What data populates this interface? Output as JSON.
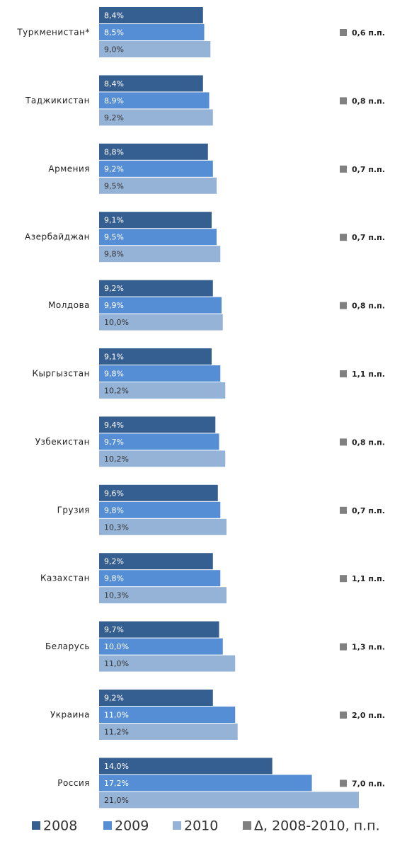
{
  "chart_data": {
    "type": "hbar",
    "categories": [
      "Туркменистан*",
      "Таджикистан",
      "Армения",
      "Азербайджан",
      "Молдова",
      "Кыргызстан",
      "Узбекистан",
      "Грузия",
      "Казахстан",
      "Беларусь",
      "Украина",
      "Россия"
    ],
    "series": [
      {
        "name": "2008",
        "color": "#365f91",
        "values": [
          8.4,
          8.4,
          8.8,
          9.1,
          9.2,
          9.1,
          9.4,
          9.6,
          9.2,
          9.7,
          9.2,
          14.0
        ],
        "value_labels": [
          "8,4%",
          "8,4%",
          "8,8%",
          "9,1%",
          "9,2%",
          "9,1%",
          "9,4%",
          "9,6%",
          "9,2%",
          "9,7%",
          "9,2%",
          "14,0%"
        ]
      },
      {
        "name": "2009",
        "color": "#558ed5",
        "values": [
          8.5,
          8.9,
          9.2,
          9.5,
          9.9,
          9.8,
          9.7,
          9.8,
          9.8,
          10.0,
          11.0,
          17.2
        ],
        "value_labels": [
          "8,5%",
          "8,9%",
          "9,2%",
          "9,5%",
          "9,9%",
          "9,8%",
          "9,7%",
          "9,8%",
          "9,8%",
          "10,0%",
          "11,0%",
          "17,2%"
        ]
      },
      {
        "name": "2010",
        "color": "#95b3d7",
        "values": [
          9.0,
          9.2,
          9.5,
          9.8,
          10.0,
          10.2,
          10.2,
          10.3,
          10.3,
          11.0,
          11.2,
          21.0
        ],
        "value_labels": [
          "9,0%",
          "9,2%",
          "9,5%",
          "9,8%",
          "10,0%",
          "10,2%",
          "10,2%",
          "10,3%",
          "10,3%",
          "11,0%",
          "11,2%",
          "21,0%"
        ]
      }
    ],
    "delta": {
      "name": "Δ, 2008-2010, п.п.",
      "color": "#808080",
      "values": [
        0.6,
        0.8,
        0.7,
        0.7,
        0.8,
        1.1,
        0.8,
        0.7,
        1.1,
        1.3,
        2.0,
        7.0
      ],
      "value_labels": [
        "0,6 п.п.",
        "0,8 п.п.",
        "0,7 п.п.",
        "0,7 п.п.",
        "0,8 п.п.",
        "1,1 п.п.",
        "0,8 п.п.",
        "0,7 п.п.",
        "1,1 п.п.",
        "1,3 п.п.",
        "2,0 п.п.",
        "7,0 п.п."
      ]
    },
    "legend": "bottom"
  }
}
